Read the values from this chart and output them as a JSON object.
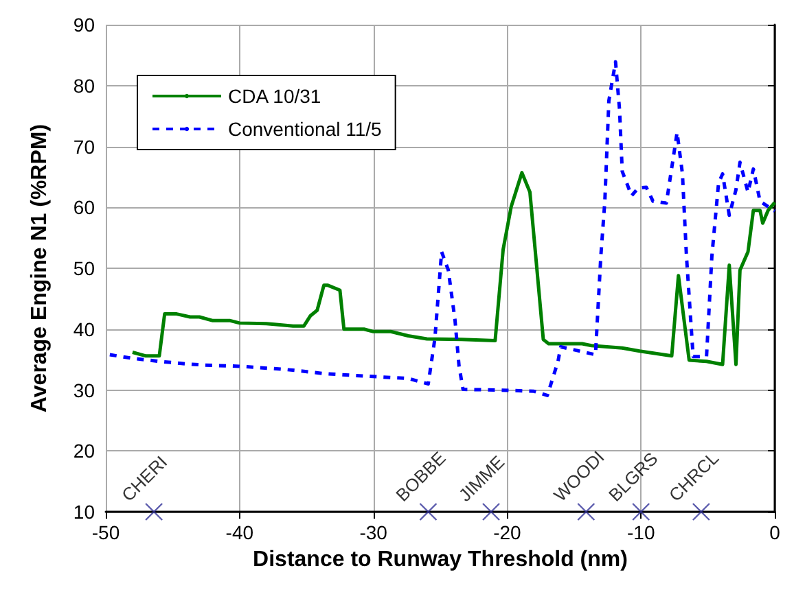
{
  "chart_data": {
    "type": "line",
    "xlabel": "Distance to Runway Threshold (nm)",
    "ylabel": "Average Engine N1 (%RPM)",
    "xlim": [
      -50,
      0
    ],
    "xticks": [
      -50,
      -40,
      -30,
      -20,
      -10,
      0
    ],
    "ylim": [
      10,
      90
    ],
    "yticks": [
      10,
      20,
      30,
      40,
      50,
      60,
      70,
      80,
      90
    ],
    "grid": true,
    "legend": "top left",
    "marker": "none",
    "series": [
      {
        "name": "CDA 10/31",
        "color": "#008000",
        "line_style": "solid",
        "x": [
          -48.0,
          -47.0,
          -46.0,
          -45.6,
          -44.7,
          -43.7,
          -43.0,
          -42.0,
          -40.7,
          -40.0,
          -38.0,
          -37.4,
          -36.0,
          -35.2,
          -34.7,
          -34.2,
          -33.7,
          -33.4,
          -32.5,
          -32.2,
          -30.7,
          -30.0,
          -28.7,
          -27.4,
          -26.0,
          -23.4,
          -20.9,
          -20.3,
          -19.7,
          -18.9,
          -18.3,
          -17.3,
          -16.9,
          -14.4,
          -13.7,
          -11.4,
          -10.1,
          -7.7,
          -7.2,
          -6.4,
          -5.1,
          -3.9,
          -3.4,
          -2.9,
          -2.6,
          -2.0,
          -1.6,
          -1.1,
          -0.9,
          -0.5,
          0
        ],
        "values": [
          36.2,
          35.6,
          35.6,
          42.5,
          42.5,
          42.0,
          42.0,
          41.4,
          41.4,
          41.0,
          40.9,
          40.8,
          40.5,
          40.5,
          42.2,
          43.1,
          47.2,
          47.2,
          46.4,
          40.0,
          40.0,
          39.6,
          39.6,
          38.9,
          38.4,
          38.3,
          38.1,
          53.1,
          60.1,
          65.7,
          62.5,
          38.3,
          37.6,
          37.6,
          37.3,
          36.9,
          36.4,
          35.6,
          48.8,
          34.9,
          34.7,
          34.2,
          50.5,
          34.2,
          49.7,
          52.7,
          59.5,
          59.5,
          57.4,
          59.5,
          60.8
        ]
      },
      {
        "name": "Conventional 11/5",
        "color": "#0000ff",
        "line_style": "dashed",
        "x": [
          -49.7,
          -48.0,
          -46.0,
          -44.0,
          -42.7,
          -40.0,
          -36.7,
          -35.3,
          -33.7,
          -30.7,
          -27.4,
          -25.9,
          -25.4,
          -24.9,
          -24.4,
          -23.9,
          -23.6,
          -23.3,
          -20.7,
          -18.0,
          -17.0,
          -16.2,
          -16.0,
          -13.4,
          -13.0,
          -12.7,
          -12.4,
          -11.9,
          -11.6,
          -11.4,
          -10.7,
          -10.2,
          -9.6,
          -9.1,
          -8.1,
          -7.3,
          -6.9,
          -6.6,
          -6.1,
          -5.1,
          -4.7,
          -4.2,
          -3.9,
          -3.4,
          -2.9,
          -2.6,
          -2.0,
          -1.6,
          -1.1,
          0
        ],
        "values": [
          35.8,
          35.2,
          34.7,
          34.3,
          34.1,
          33.9,
          33.4,
          33.1,
          32.7,
          32.3,
          31.9,
          31.0,
          38.5,
          52.7,
          49.7,
          41.5,
          34.0,
          30.1,
          30.0,
          29.8,
          29.1,
          34.7,
          37.1,
          35.8,
          52.0,
          61.0,
          77.5,
          83.9,
          76.0,
          65.9,
          61.9,
          63.2,
          63.3,
          61.0,
          60.7,
          72.3,
          65.5,
          52.0,
          35.5,
          35.5,
          52.0,
          64.0,
          65.5,
          58.7,
          62.9,
          67.4,
          62.5,
          66.3,
          61.0,
          59.4
        ]
      },
      {
        "type": "scatter",
        "color": "#333399",
        "marker": "cross",
        "x": [
          -46.4,
          -25.9,
          -21.2,
          -14.1,
          -10.0,
          -5.5
        ],
        "values": [
          10,
          10,
          10,
          10,
          10,
          10
        ]
      }
    ],
    "annotations": [
      {
        "text": "CHERI",
        "x": -46.4,
        "y": 10
      },
      {
        "text": "BOBBE",
        "x": -25.9,
        "y": 10
      },
      {
        "text": "JIMME",
        "x": -21.2,
        "y": 10
      },
      {
        "text": "WOODI",
        "x": -14.1,
        "y": 10
      },
      {
        "text": "BLGRS",
        "x": -10.0,
        "y": 10
      },
      {
        "text": "CHRCL",
        "x": -5.5,
        "y": 10
      }
    ]
  }
}
